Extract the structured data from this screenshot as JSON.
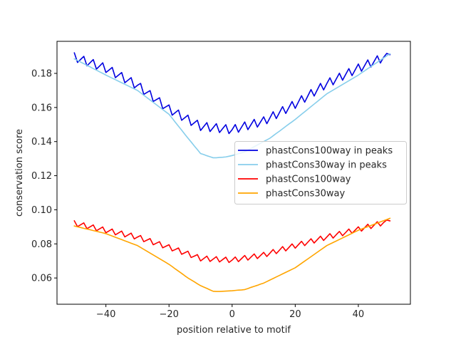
{
  "chart_data": {
    "type": "line",
    "title": "",
    "xlabel": "position relative to motif",
    "ylabel": "conservation score",
    "xlim": [
      -55.5,
      56.5
    ],
    "ylim": [
      0.0446,
      0.1988
    ],
    "xticks": [
      -40,
      -20,
      0,
      20,
      40
    ],
    "xtick_labels": [
      "−40",
      "−20",
      "0",
      "20",
      "40"
    ],
    "yticks": [
      0.06,
      0.08,
      0.1,
      0.12,
      0.14,
      0.16,
      0.18
    ],
    "ytick_labels": [
      "0.06",
      "0.08",
      "0.10",
      "0.12",
      "0.14",
      "0.16",
      "0.18"
    ],
    "grid": false,
    "legend_position": "center-right",
    "x_start": -50,
    "x_end": 50,
    "series": [
      {
        "name": "phastCons100way in peaks",
        "color": "#0000e0",
        "values": [
          0.192,
          0.1864,
          0.1882,
          0.19,
          0.1844,
          0.1863,
          0.1881,
          0.1825,
          0.1843,
          0.1862,
          0.1805,
          0.182,
          0.1835,
          0.1775,
          0.179,
          0.1805,
          0.1745,
          0.176,
          0.1775,
          0.1715,
          0.173,
          0.1741,
          0.1677,
          0.1688,
          0.1699,
          0.1635,
          0.1646,
          0.1657,
          0.1593,
          0.1604,
          0.1615,
          0.1555,
          0.157,
          0.1585,
          0.1525,
          0.154,
          0.1555,
          0.1495,
          0.151,
          0.1525,
          0.1465,
          0.1488,
          0.1511,
          0.1459,
          0.1482,
          0.1505,
          0.1453,
          0.1476,
          0.1499,
          0.1447,
          0.147,
          0.15,
          0.1455,
          0.1485,
          0.1515,
          0.147,
          0.15,
          0.153,
          0.1485,
          0.1515,
          0.1545,
          0.1505,
          0.154,
          0.1575,
          0.1535,
          0.157,
          0.1605,
          0.1565,
          0.16,
          0.1635,
          0.1595,
          0.1632,
          0.1669,
          0.1631,
          0.1668,
          0.1705,
          0.1667,
          0.1704,
          0.1741,
          0.1703,
          0.174,
          0.1774,
          0.1733,
          0.1767,
          0.1801,
          0.176,
          0.1794,
          0.1828,
          0.1787,
          0.1821,
          0.1855,
          0.1813,
          0.1846,
          0.1879,
          0.1837,
          0.187,
          0.1903,
          0.1861,
          0.1894,
          0.1917,
          0.191
        ]
      },
      {
        "name": "phastCons30way in peaks",
        "color": "#87ceeb",
        "values": [
          0.1885,
          0.1876,
          0.1866,
          0.1857,
          0.1847,
          0.1838,
          0.1828,
          0.1819,
          0.1809,
          0.18,
          0.179,
          0.1781,
          0.1772,
          0.1763,
          0.1754,
          0.1745,
          0.1736,
          0.1727,
          0.1718,
          0.1709,
          0.17,
          0.1686,
          0.1672,
          0.1658,
          0.1644,
          0.163,
          0.1616,
          0.1602,
          0.1588,
          0.1574,
          0.156,
          0.1537,
          0.1513,
          0.149,
          0.1467,
          0.1443,
          0.142,
          0.1398,
          0.1375,
          0.1353,
          0.133,
          0.1324,
          0.1317,
          0.1311,
          0.1305,
          0.1305,
          0.1307,
          0.1308,
          0.131,
          0.1314,
          0.1318,
          0.1323,
          0.1329,
          0.1334,
          0.134,
          0.135,
          0.136,
          0.137,
          0.138,
          0.139,
          0.14,
          0.141,
          0.142,
          0.1434,
          0.1448,
          0.1461,
          0.1475,
          0.1489,
          0.1503,
          0.1516,
          0.153,
          0.1545,
          0.156,
          0.1575,
          0.159,
          0.1605,
          0.162,
          0.1635,
          0.165,
          0.1665,
          0.168,
          0.1691,
          0.1702,
          0.1713,
          0.1724,
          0.1735,
          0.1746,
          0.1757,
          0.1768,
          0.1779,
          0.179,
          0.1803,
          0.1815,
          0.1828,
          0.184,
          0.1853,
          0.1865,
          0.1878,
          0.189,
          0.1903,
          0.1915
        ]
      },
      {
        "name": "phastCons100way",
        "color": "#ff0000",
        "values": [
          0.0935,
          0.0901,
          0.0912,
          0.0923,
          0.0889,
          0.09,
          0.0911,
          0.0877,
          0.0888,
          0.0899,
          0.0865,
          0.0876,
          0.0887,
          0.0853,
          0.0864,
          0.0875,
          0.0841,
          0.0852,
          0.0863,
          0.0829,
          0.084,
          0.0849,
          0.0813,
          0.0822,
          0.0831,
          0.0795,
          0.0804,
          0.0813,
          0.0777,
          0.0786,
          0.0795,
          0.0759,
          0.0767,
          0.0776,
          0.0739,
          0.0748,
          0.0757,
          0.072,
          0.0728,
          0.0737,
          0.07,
          0.0714,
          0.0728,
          0.0697,
          0.0711,
          0.0725,
          0.0694,
          0.0708,
          0.0722,
          0.0691,
          0.0705,
          0.0723,
          0.0696,
          0.0714,
          0.0732,
          0.0705,
          0.0723,
          0.0741,
          0.0714,
          0.0732,
          0.075,
          0.0726,
          0.0746,
          0.0767,
          0.0743,
          0.0763,
          0.0784,
          0.0759,
          0.0779,
          0.08,
          0.0775,
          0.0795,
          0.0815,
          0.079,
          0.081,
          0.083,
          0.0805,
          0.0825,
          0.0845,
          0.082,
          0.084,
          0.086,
          0.0834,
          0.0854,
          0.0873,
          0.0848,
          0.0867,
          0.0887,
          0.0862,
          0.0881,
          0.09,
          0.0875,
          0.0895,
          0.0915,
          0.089,
          0.091,
          0.093,
          0.0905,
          0.0925,
          0.094,
          0.0935
        ]
      },
      {
        "name": "phastCons30way",
        "color": "#ffa500",
        "values": [
          0.0905,
          0.09,
          0.0896,
          0.0891,
          0.0887,
          0.0883,
          0.0878,
          0.0874,
          0.0869,
          0.0865,
          0.086,
          0.0853,
          0.0846,
          0.0839,
          0.0832,
          0.0825,
          0.0818,
          0.0811,
          0.0804,
          0.0797,
          0.079,
          0.0779,
          0.0768,
          0.0757,
          0.0746,
          0.0735,
          0.0724,
          0.0713,
          0.0702,
          0.0691,
          0.068,
          0.0667,
          0.0653,
          0.064,
          0.0627,
          0.0613,
          0.06,
          0.0589,
          0.0578,
          0.0566,
          0.0555,
          0.0547,
          0.0539,
          0.053,
          0.0522,
          0.0521,
          0.0521,
          0.0522,
          0.0523,
          0.0524,
          0.0525,
          0.0527,
          0.0529,
          0.053,
          0.0532,
          0.0538,
          0.0545,
          0.0551,
          0.0557,
          0.0564,
          0.057,
          0.0579,
          0.0588,
          0.0597,
          0.0606,
          0.0615,
          0.0624,
          0.0633,
          0.0642,
          0.0651,
          0.066,
          0.0673,
          0.0686,
          0.0699,
          0.0712,
          0.0725,
          0.0738,
          0.0751,
          0.0764,
          0.0777,
          0.079,
          0.0799,
          0.0808,
          0.0817,
          0.0826,
          0.0835,
          0.0844,
          0.0853,
          0.0862,
          0.0871,
          0.088,
          0.0887,
          0.0894,
          0.0901,
          0.0908,
          0.0915,
          0.0922,
          0.0929,
          0.0936,
          0.0943,
          0.095
        ]
      }
    ]
  }
}
